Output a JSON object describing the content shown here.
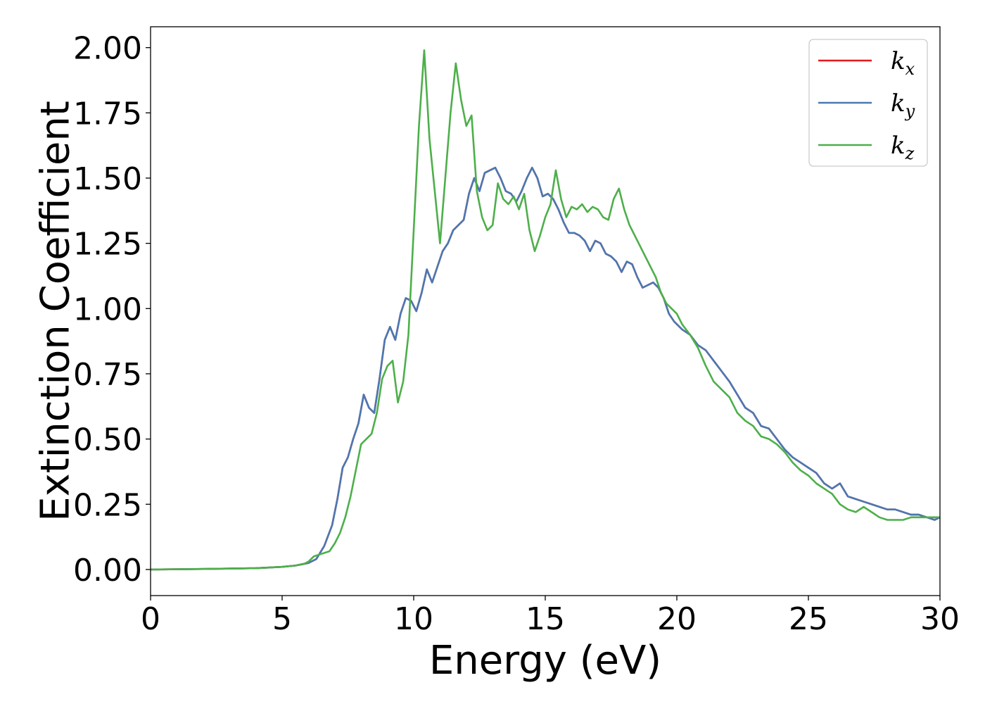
{
  "chart_data": {
    "type": "line",
    "title": "",
    "xlabel": "Energy (eV)",
    "ylabel": "Extinction Coefficient",
    "xlim": [
      0,
      30
    ],
    "ylim": [
      -0.1,
      2.08
    ],
    "xticks": [
      0,
      5,
      10,
      15,
      20,
      25,
      30
    ],
    "xtick_labels": [
      "0",
      "5",
      "10",
      "15",
      "20",
      "25",
      "30"
    ],
    "yticks": [
      0.0,
      0.25,
      0.5,
      0.75,
      1.0,
      1.25,
      1.5,
      1.75,
      2.0
    ],
    "ytick_labels": [
      "0.00",
      "0.25",
      "0.50",
      "0.75",
      "1.00",
      "1.25",
      "1.50",
      "1.75",
      "2.00"
    ],
    "grid": false,
    "legend_position": "top-right",
    "series": [
      {
        "name": "k_x",
        "label_base": "k",
        "label_sub": "x",
        "color": "#e41a1c",
        "x": [
          0,
          2,
          4,
          5,
          5.5,
          6,
          6.3,
          6.6,
          6.9,
          7.1,
          7.3,
          7.5,
          7.7,
          7.9,
          8.1,
          8.3,
          8.5,
          8.7,
          8.9,
          9.1,
          9.3,
          9.5,
          9.7,
          9.9,
          10.1,
          10.3,
          10.5,
          10.7,
          10.9,
          11.1,
          11.3,
          11.5,
          11.7,
          11.9,
          12.1,
          12.3,
          12.5,
          12.7,
          12.9,
          13.1,
          13.3,
          13.5,
          13.7,
          13.9,
          14.1,
          14.3,
          14.5,
          14.7,
          14.9,
          15.1,
          15.3,
          15.5,
          15.7,
          15.9,
          16.1,
          16.3,
          16.5,
          16.7,
          16.9,
          17.1,
          17.3,
          17.5,
          17.7,
          17.9,
          18.1,
          18.3,
          18.5,
          18.7,
          18.9,
          19.1,
          19.3,
          19.5,
          19.7,
          19.9,
          20.2,
          20.5,
          20.8,
          21.1,
          21.4,
          21.7,
          22.0,
          22.3,
          22.6,
          22.9,
          23.2,
          23.5,
          23.8,
          24.1,
          24.4,
          24.7,
          25.0,
          25.3,
          25.6,
          25.9,
          26.2,
          26.5,
          26.8,
          27.1,
          27.4,
          27.7,
          28.0,
          28.3,
          28.6,
          28.9,
          29.2,
          29.5,
          29.8,
          30
        ],
        "y": [
          0.0,
          0.002,
          0.005,
          0.01,
          0.015,
          0.025,
          0.04,
          0.09,
          0.17,
          0.27,
          0.39,
          0.43,
          0.5,
          0.56,
          0.67,
          0.62,
          0.6,
          0.73,
          0.88,
          0.93,
          0.88,
          0.98,
          1.04,
          1.03,
          0.99,
          1.06,
          1.15,
          1.1,
          1.16,
          1.22,
          1.25,
          1.3,
          1.32,
          1.34,
          1.44,
          1.5,
          1.45,
          1.52,
          1.53,
          1.54,
          1.5,
          1.45,
          1.44,
          1.41,
          1.45,
          1.5,
          1.54,
          1.5,
          1.43,
          1.44,
          1.42,
          1.38,
          1.33,
          1.29,
          1.29,
          1.28,
          1.26,
          1.22,
          1.26,
          1.25,
          1.21,
          1.2,
          1.18,
          1.14,
          1.18,
          1.17,
          1.12,
          1.08,
          1.09,
          1.1,
          1.08,
          1.04,
          0.98,
          0.95,
          0.92,
          0.9,
          0.86,
          0.84,
          0.8,
          0.76,
          0.72,
          0.67,
          0.62,
          0.6,
          0.55,
          0.54,
          0.5,
          0.46,
          0.43,
          0.41,
          0.39,
          0.37,
          0.33,
          0.31,
          0.33,
          0.28,
          0.27,
          0.26,
          0.25,
          0.24,
          0.23,
          0.23,
          0.22,
          0.21,
          0.21,
          0.2,
          0.19,
          0.2
        ]
      },
      {
        "name": "k_y",
        "label_base": "k",
        "label_sub": "y",
        "color": "#4a78b2",
        "x": [
          0,
          2,
          4,
          5,
          5.5,
          6,
          6.3,
          6.6,
          6.9,
          7.1,
          7.3,
          7.5,
          7.7,
          7.9,
          8.1,
          8.3,
          8.5,
          8.7,
          8.9,
          9.1,
          9.3,
          9.5,
          9.7,
          9.9,
          10.1,
          10.3,
          10.5,
          10.7,
          10.9,
          11.1,
          11.3,
          11.5,
          11.7,
          11.9,
          12.1,
          12.3,
          12.5,
          12.7,
          12.9,
          13.1,
          13.3,
          13.5,
          13.7,
          13.9,
          14.1,
          14.3,
          14.5,
          14.7,
          14.9,
          15.1,
          15.3,
          15.5,
          15.7,
          15.9,
          16.1,
          16.3,
          16.5,
          16.7,
          16.9,
          17.1,
          17.3,
          17.5,
          17.7,
          17.9,
          18.1,
          18.3,
          18.5,
          18.7,
          18.9,
          19.1,
          19.3,
          19.5,
          19.7,
          19.9,
          20.2,
          20.5,
          20.8,
          21.1,
          21.4,
          21.7,
          22.0,
          22.3,
          22.6,
          22.9,
          23.2,
          23.5,
          23.8,
          24.1,
          24.4,
          24.7,
          25.0,
          25.3,
          25.6,
          25.9,
          26.2,
          26.5,
          26.8,
          27.1,
          27.4,
          27.7,
          28.0,
          28.3,
          28.6,
          28.9,
          29.2,
          29.5,
          29.8,
          30
        ],
        "y": [
          0.0,
          0.002,
          0.005,
          0.01,
          0.015,
          0.025,
          0.04,
          0.09,
          0.17,
          0.27,
          0.39,
          0.43,
          0.5,
          0.56,
          0.67,
          0.62,
          0.6,
          0.73,
          0.88,
          0.93,
          0.88,
          0.98,
          1.04,
          1.03,
          0.99,
          1.06,
          1.15,
          1.1,
          1.16,
          1.22,
          1.25,
          1.3,
          1.32,
          1.34,
          1.44,
          1.5,
          1.45,
          1.52,
          1.53,
          1.54,
          1.5,
          1.45,
          1.44,
          1.41,
          1.45,
          1.5,
          1.54,
          1.5,
          1.43,
          1.44,
          1.42,
          1.38,
          1.33,
          1.29,
          1.29,
          1.28,
          1.26,
          1.22,
          1.26,
          1.25,
          1.21,
          1.2,
          1.18,
          1.14,
          1.18,
          1.17,
          1.12,
          1.08,
          1.09,
          1.1,
          1.08,
          1.04,
          0.98,
          0.95,
          0.92,
          0.9,
          0.86,
          0.84,
          0.8,
          0.76,
          0.72,
          0.67,
          0.62,
          0.6,
          0.55,
          0.54,
          0.5,
          0.46,
          0.43,
          0.41,
          0.39,
          0.37,
          0.33,
          0.31,
          0.33,
          0.28,
          0.27,
          0.26,
          0.25,
          0.24,
          0.23,
          0.23,
          0.22,
          0.21,
          0.21,
          0.2,
          0.19,
          0.2
        ]
      },
      {
        "name": "k_z",
        "label_base": "k",
        "label_sub": "z",
        "color": "#4daf4a",
        "x": [
          0,
          2,
          4,
          5,
          5.5,
          5.8,
          6.0,
          6.2,
          6.5,
          6.8,
          7.0,
          7.2,
          7.4,
          7.6,
          7.8,
          8.0,
          8.2,
          8.4,
          8.6,
          8.8,
          9.0,
          9.2,
          9.4,
          9.6,
          9.8,
          10.0,
          10.2,
          10.4,
          10.6,
          10.8,
          11.0,
          11.2,
          11.4,
          11.6,
          11.8,
          12.0,
          12.2,
          12.4,
          12.6,
          12.8,
          13.0,
          13.2,
          13.4,
          13.6,
          13.8,
          14.0,
          14.2,
          14.4,
          14.6,
          14.8,
          15.0,
          15.2,
          15.4,
          15.6,
          15.8,
          16.0,
          16.2,
          16.4,
          16.6,
          16.8,
          17.0,
          17.2,
          17.4,
          17.6,
          17.8,
          18.0,
          18.2,
          18.4,
          18.6,
          18.8,
          19.0,
          19.2,
          19.4,
          19.6,
          19.8,
          20.0,
          20.2,
          20.5,
          20.8,
          21.1,
          21.4,
          21.7,
          22.0,
          22.3,
          22.6,
          22.9,
          23.2,
          23.5,
          23.8,
          24.1,
          24.4,
          24.7,
          25.0,
          25.3,
          25.6,
          25.9,
          26.2,
          26.5,
          26.8,
          27.1,
          27.4,
          27.7,
          28.0,
          28.3,
          28.6,
          28.9,
          29.2,
          29.5,
          29.8,
          30
        ],
        "y": [
          0.0,
          0.002,
          0.005,
          0.01,
          0.015,
          0.02,
          0.03,
          0.05,
          0.06,
          0.07,
          0.1,
          0.14,
          0.2,
          0.28,
          0.38,
          0.48,
          0.5,
          0.52,
          0.6,
          0.73,
          0.78,
          0.8,
          0.64,
          0.72,
          0.9,
          1.3,
          1.7,
          1.99,
          1.65,
          1.45,
          1.25,
          1.5,
          1.75,
          1.94,
          1.8,
          1.7,
          1.74,
          1.45,
          1.35,
          1.3,
          1.32,
          1.48,
          1.42,
          1.4,
          1.43,
          1.38,
          1.44,
          1.3,
          1.22,
          1.28,
          1.35,
          1.4,
          1.53,
          1.42,
          1.35,
          1.39,
          1.38,
          1.4,
          1.37,
          1.39,
          1.38,
          1.35,
          1.34,
          1.42,
          1.46,
          1.38,
          1.32,
          1.28,
          1.24,
          1.2,
          1.16,
          1.12,
          1.06,
          1.02,
          1.0,
          0.98,
          0.94,
          0.9,
          0.85,
          0.78,
          0.72,
          0.69,
          0.66,
          0.6,
          0.57,
          0.55,
          0.51,
          0.5,
          0.48,
          0.45,
          0.41,
          0.38,
          0.36,
          0.33,
          0.31,
          0.29,
          0.25,
          0.23,
          0.22,
          0.24,
          0.22,
          0.2,
          0.19,
          0.19,
          0.19,
          0.2,
          0.2,
          0.2,
          0.2,
          0.2
        ]
      }
    ]
  }
}
